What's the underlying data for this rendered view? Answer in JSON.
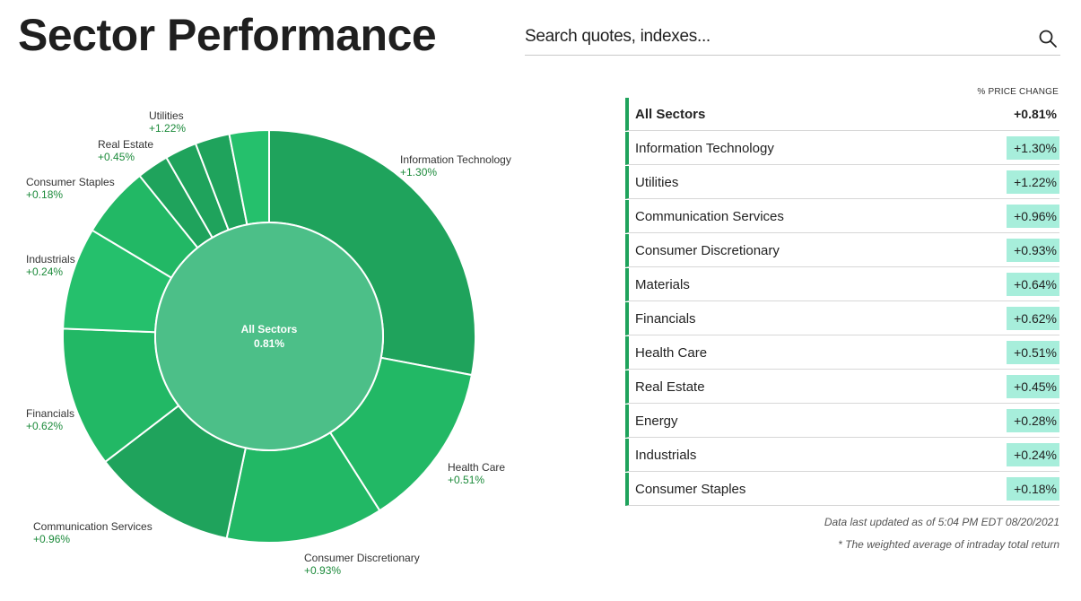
{
  "page_title": "Sector Performance",
  "search": {
    "placeholder": "Search quotes, indexes..."
  },
  "icons": {
    "search": "search-icon"
  },
  "colors": {
    "slice_dark": "#1fa35c",
    "slice_mid": "#22b865",
    "slice_light": "#25c06c",
    "center": "#4cbf88",
    "value_text": "#1b8a3a",
    "badge_bg": "#a7eedb"
  },
  "chart_data": {
    "type": "pie",
    "center": {
      "label": "All Sectors",
      "value": "0.81%"
    },
    "slices": [
      {
        "name": "Information Technology",
        "value": 1.3,
        "label": "+1.30%",
        "weight": 28.0
      },
      {
        "name": "Health Care",
        "value": 0.51,
        "label": "+0.51%",
        "weight": 13.0
      },
      {
        "name": "Consumer Discretionary",
        "value": 0.93,
        "label": "+0.93%",
        "weight": 12.3
      },
      {
        "name": "Communication Services",
        "value": 0.96,
        "label": "+0.96%",
        "weight": 11.3
      },
      {
        "name": "Financials",
        "value": 0.62,
        "label": "+0.62%",
        "weight": 11.0
      },
      {
        "name": "Industrials",
        "value": 0.24,
        "label": "+0.24%",
        "weight": 8.0
      },
      {
        "name": "Consumer Staples",
        "value": 0.18,
        "label": "+0.18%",
        "weight": 5.6
      },
      {
        "name": "Real Estate",
        "value": 0.45,
        "label": "+0.45%",
        "weight": 2.5
      },
      {
        "name": "Materials",
        "value": 0.64,
        "label": "",
        "weight": 2.5
      },
      {
        "name": "Energy",
        "value": 0.28,
        "label": "",
        "weight": 2.7
      },
      {
        "name": "Utilities",
        "value": 1.22,
        "label": "+1.22%",
        "weight": 3.1
      }
    ]
  },
  "table": {
    "header": "% PRICE CHANGE",
    "total": {
      "name": "All Sectors",
      "value": "+0.81%"
    },
    "rows": [
      {
        "name": "Information Technology",
        "value": "+1.30%"
      },
      {
        "name": "Utilities",
        "value": "+1.22%"
      },
      {
        "name": "Communication Services",
        "value": "+0.96%"
      },
      {
        "name": "Consumer Discretionary",
        "value": "+0.93%"
      },
      {
        "name": "Materials",
        "value": "+0.64%"
      },
      {
        "name": "Financials",
        "value": "+0.62%"
      },
      {
        "name": "Health Care",
        "value": "+0.51%"
      },
      {
        "name": "Real Estate",
        "value": "+0.45%"
      },
      {
        "name": "Energy",
        "value": "+0.28%"
      },
      {
        "name": "Industrials",
        "value": "+0.24%"
      },
      {
        "name": "Consumer Staples",
        "value": "+0.18%"
      }
    ]
  },
  "footnotes": {
    "updated": "Data last updated as of 5:04 PM EDT 08/20/2021",
    "note": "* The weighted average of intraday total return"
  }
}
